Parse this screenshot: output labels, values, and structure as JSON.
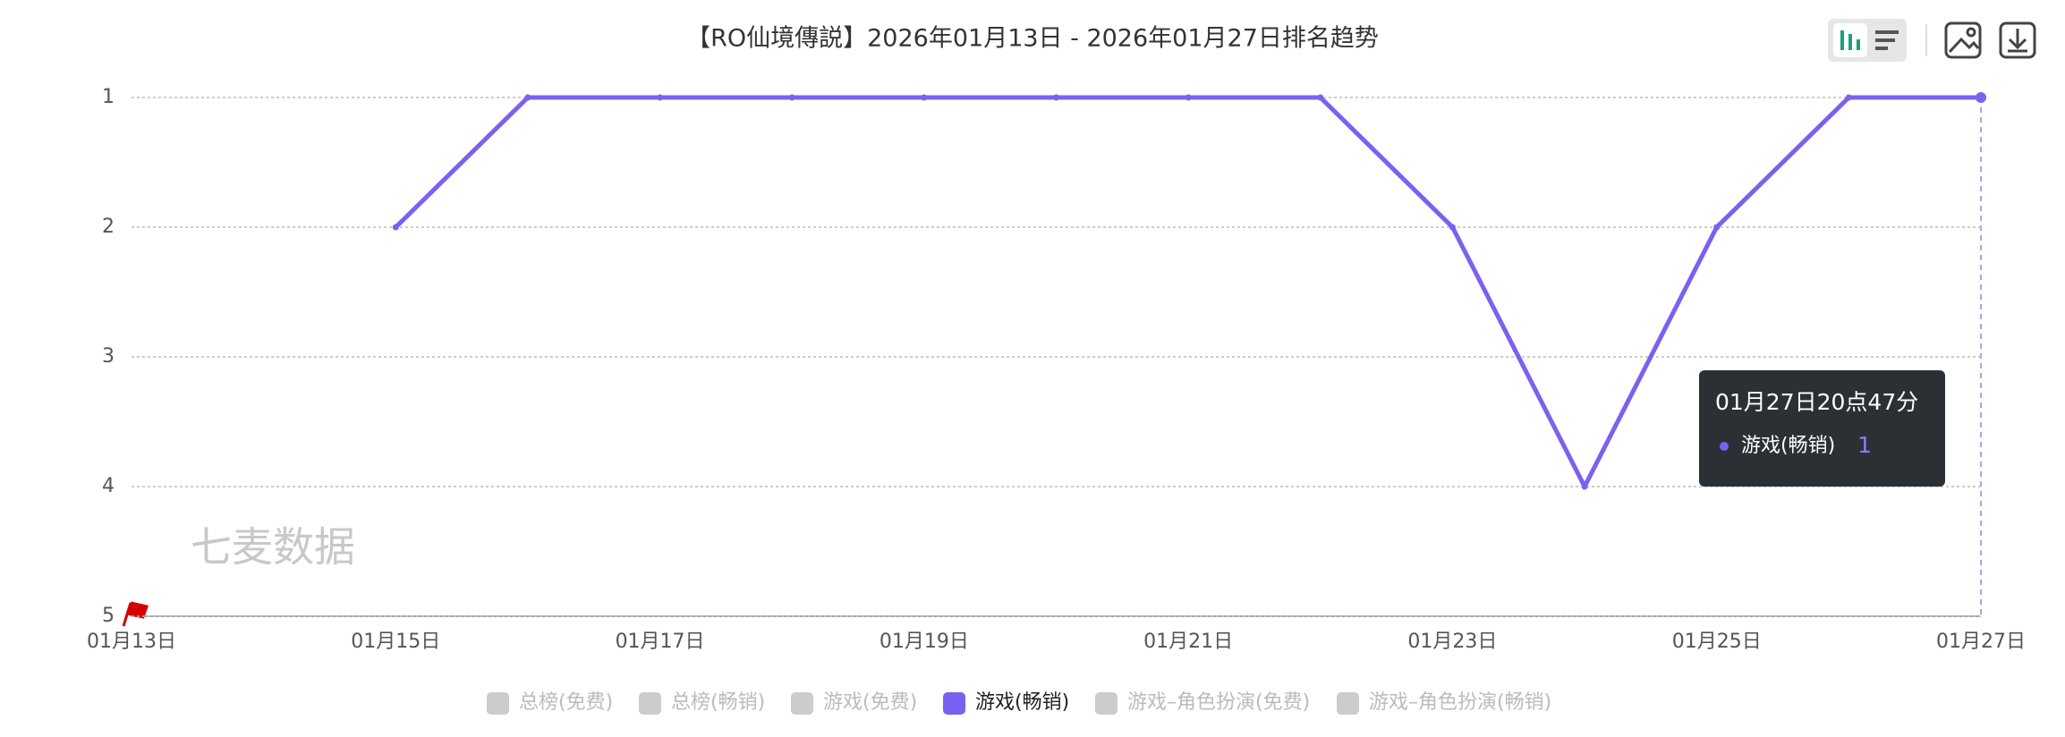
{
  "chart_data": {
    "type": "line",
    "title": "【RO仙境傳説】2026年01月13日 - 2026年01月27日排名趋势",
    "categories": [
      "01月13日",
      null,
      "01月15日",
      null,
      "01月17日",
      null,
      "01月19日",
      null,
      "01月21日",
      null,
      "01月23日",
      null,
      "01月25日",
      null,
      "01月27日"
    ],
    "series": [
      {
        "name": "总榜(免费)",
        "color": "#cccccc",
        "visible": false,
        "values": [
          null,
          null,
          null,
          null,
          null,
          null,
          null,
          null,
          null,
          null,
          null,
          null,
          null,
          null,
          null
        ]
      },
      {
        "name": "总榜(畅销)",
        "color": "#cccccc",
        "visible": false,
        "values": [
          null,
          null,
          null,
          null,
          null,
          null,
          null,
          null,
          null,
          null,
          null,
          null,
          null,
          null,
          null
        ]
      },
      {
        "name": "游戏(免费)",
        "color": "#cccccc",
        "visible": false,
        "values": [
          null,
          null,
          null,
          null,
          null,
          null,
          null,
          null,
          null,
          null,
          null,
          null,
          null,
          null,
          null
        ]
      },
      {
        "name": "游戏(畅销)",
        "color": "#7b61f0",
        "visible": true,
        "values": [
          null,
          null,
          2,
          1,
          1,
          1,
          1,
          1,
          1,
          1,
          2,
          4,
          2,
          1,
          1
        ]
      },
      {
        "name": "游戏–角色扮演(免费)",
        "color": "#cccccc",
        "visible": false,
        "values": [
          null,
          null,
          null,
          null,
          null,
          null,
          null,
          null,
          null,
          null,
          null,
          null,
          null,
          null,
          null
        ]
      },
      {
        "name": "游戏–角色扮演(畅销)",
        "color": "#cccccc",
        "visible": false,
        "values": [
          null,
          null,
          null,
          null,
          null,
          null,
          null,
          null,
          null,
          null,
          null,
          null,
          null,
          null,
          null
        ]
      }
    ],
    "ylim": [
      1,
      5
    ],
    "yticks": [
      1,
      2,
      3,
      4,
      5
    ],
    "y_inverted": true,
    "grid": true,
    "watermark": "七麦数据",
    "tooltip": {
      "title": "01月27日20点47分",
      "series": "游戏(畅销)",
      "value": 1
    }
  }
}
